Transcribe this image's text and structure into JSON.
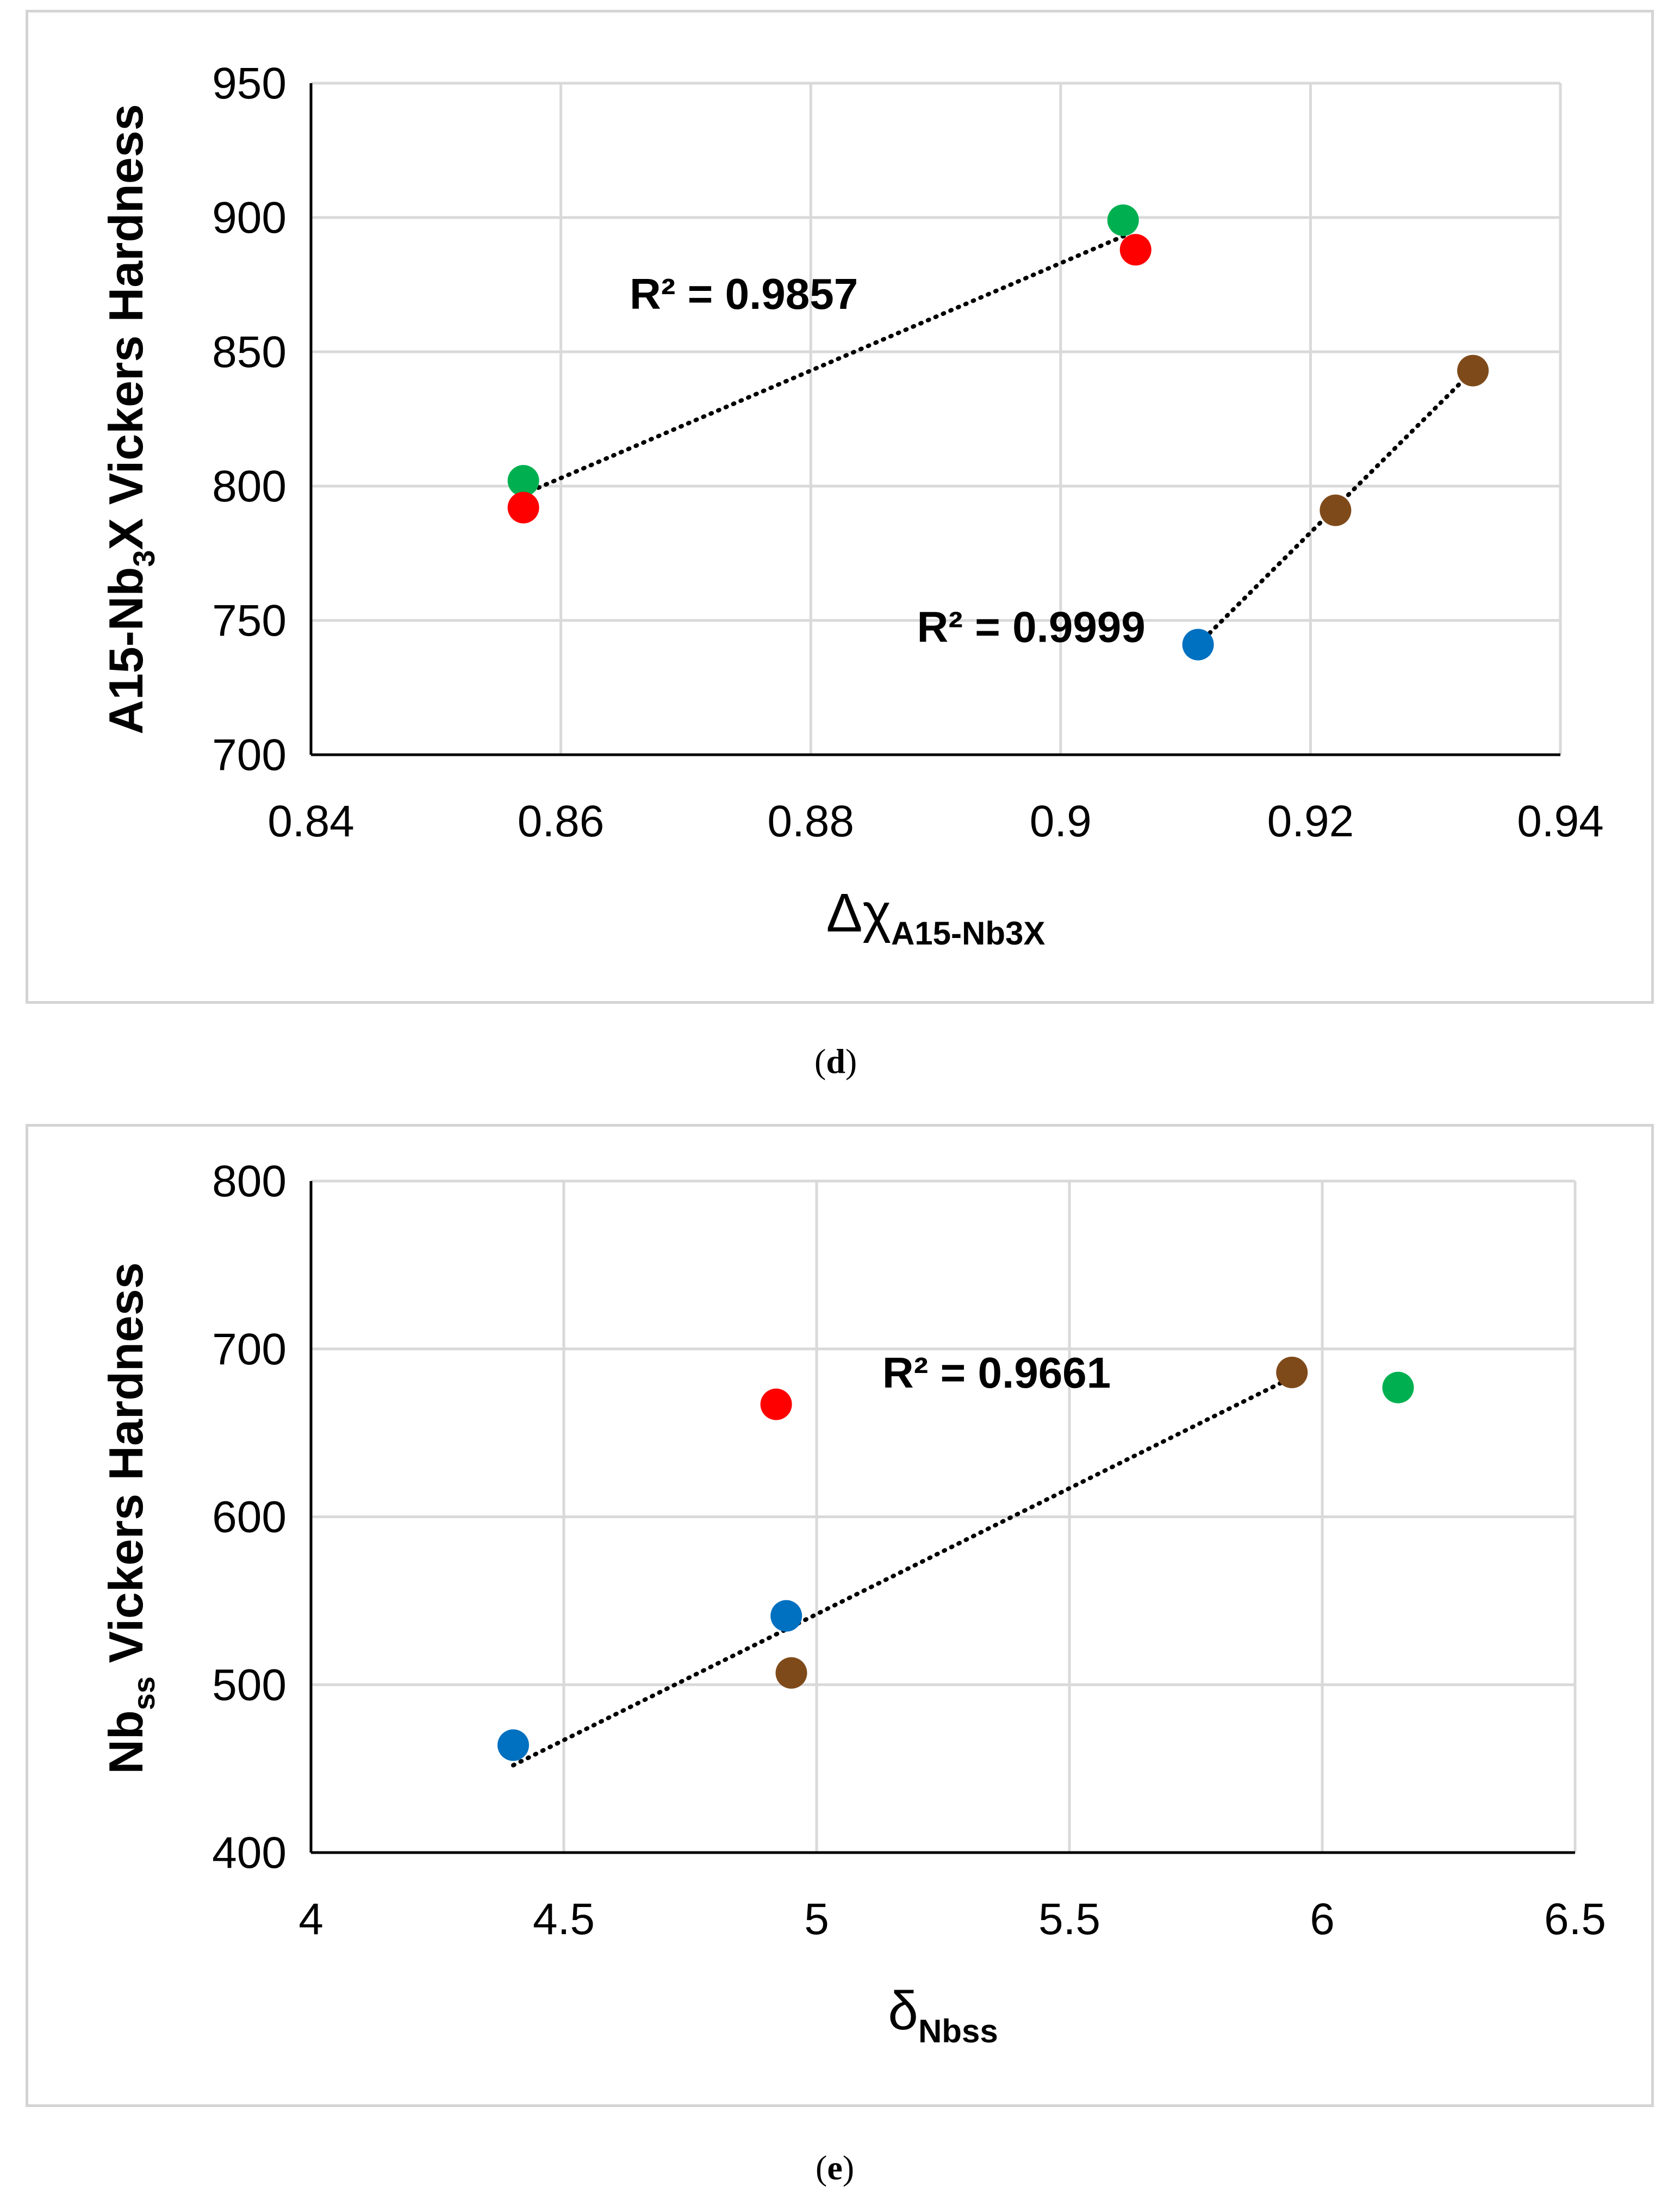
{
  "chart_data": [
    {
      "id": "d",
      "type": "scatter",
      "caption_open": "(",
      "caption_letter": "d",
      "caption_close": ")",
      "ylabel_main": "A15-Nb",
      "ylabel_sub": "3",
      "ylabel_rest": "X Vickers Hardness",
      "xlabel_main": "Δχ",
      "xlabel_sub": "A15-Nb3X",
      "xlim": [
        0.84,
        0.94
      ],
      "ylim": [
        700,
        950
      ],
      "xticks": [
        0.84,
        0.86,
        0.88,
        0.9,
        0.92,
        0.94
      ],
      "xtick_labels": [
        "0.84",
        "0.86",
        "0.88",
        "0.9",
        "0.92",
        "0.94"
      ],
      "yticks": [
        700,
        750,
        800,
        850,
        900,
        950
      ],
      "ytick_labels": [
        "700",
        "750",
        "800",
        "850",
        "900",
        "950"
      ],
      "grid": true,
      "points": [
        {
          "x": 0.857,
          "y": 802,
          "color": "#00b050"
        },
        {
          "x": 0.857,
          "y": 792,
          "color": "#ff0000"
        },
        {
          "x": 0.905,
          "y": 899,
          "color": "#00b050"
        },
        {
          "x": 0.906,
          "y": 888,
          "color": "#ff0000"
        },
        {
          "x": 0.911,
          "y": 741,
          "color": "#0070c0"
        },
        {
          "x": 0.922,
          "y": 791,
          "color": "#7f4a1a"
        },
        {
          "x": 0.933,
          "y": 843,
          "color": "#7f4a1a"
        }
      ],
      "trendlines": [
        {
          "x": [
            0.857,
            0.9055
          ],
          "y": [
            797,
            894
          ]
        },
        {
          "x": [
            0.911,
            0.933
          ],
          "y": [
            741,
            843
          ]
        }
      ],
      "annotations": [
        {
          "text": "R² = 0.9857",
          "x": 0.8655,
          "y": 866
        },
        {
          "text": "R² = 0.9999",
          "x": 0.8885,
          "y": 742
        }
      ]
    },
    {
      "id": "e",
      "type": "scatter",
      "caption_open": "(",
      "caption_letter": "e",
      "caption_close": ")",
      "ylabel_main": "Nb",
      "ylabel_sub": "ss",
      "ylabel_rest": " Vickers Hardness",
      "xlabel_main": "δ",
      "xlabel_sub": "Nbss",
      "xlim": [
        4,
        6.5
      ],
      "ylim": [
        400,
        800
      ],
      "xticks": [
        4,
        4.5,
        5,
        5.5,
        6,
        6.5
      ],
      "xtick_labels": [
        "4",
        "4.5",
        "5",
        "5.5",
        "6",
        "6.5"
      ],
      "yticks": [
        400,
        500,
        600,
        700,
        800
      ],
      "ytick_labels": [
        "400",
        "500",
        "600",
        "700",
        "800"
      ],
      "grid": true,
      "points": [
        {
          "x": 4.92,
          "y": 667,
          "color": "#ff0000"
        },
        {
          "x": 5.94,
          "y": 686,
          "color": "#7f4a1a"
        },
        {
          "x": 6.15,
          "y": 677,
          "color": "#00b050"
        },
        {
          "x": 4.94,
          "y": 541,
          "color": "#0070c0"
        },
        {
          "x": 4.95,
          "y": 507,
          "color": "#7f4a1a"
        },
        {
          "x": 4.4,
          "y": 464,
          "color": "#0070c0"
        }
      ],
      "trendlines": [
        {
          "x": [
            4.4,
            5.94
          ],
          "y": [
            452,
            683
          ]
        }
      ],
      "annotations": [
        {
          "text": "R² = 0.9661",
          "x": 5.13,
          "y": 677
        }
      ]
    }
  ]
}
